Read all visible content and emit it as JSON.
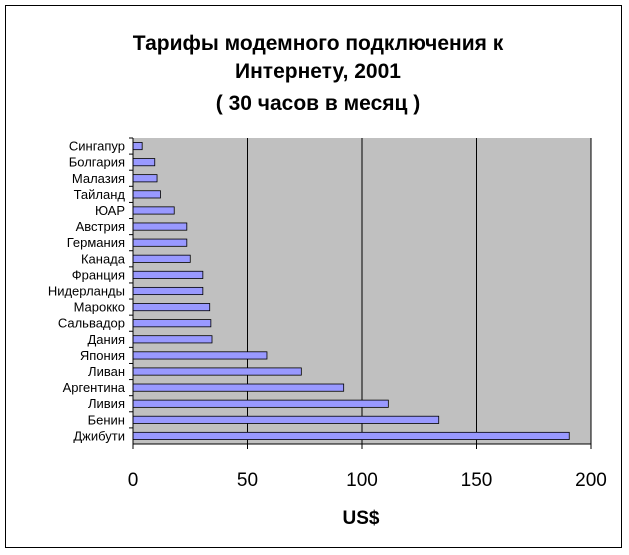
{
  "chart_data": {
    "type": "bar",
    "orientation": "horizontal",
    "title_lines": [
      "Тарифы модемного подключения к",
      "Интернету, 2001",
      "( 30 часов в месяц )"
    ],
    "xlabel": "US$",
    "ylabel": "",
    "categories": [
      "Сингапур",
      "Болгария",
      "Малазия",
      "Тайланд",
      "ЮАР",
      "Австрия",
      "Германия",
      "Канада",
      "Франция",
      "Нидерланды",
      "Марокко",
      "Сальвадор",
      "Дания",
      "Япония",
      "Ливан",
      "Аргентина",
      "Ливия",
      "Бенин",
      "Джибути"
    ],
    "values": [
      4,
      9.5,
      10.5,
      12,
      18,
      23.5,
      23.5,
      25,
      30.5,
      30.5,
      33.5,
      34,
      34.5,
      58.5,
      73.5,
      92,
      111.5,
      133.5,
      190.5
    ],
    "xlim": [
      0,
      200
    ],
    "xticks": [
      "0",
      "50",
      "100",
      "150",
      "200"
    ],
    "grid": true,
    "colors": {
      "plot_background": "#C0C0C0",
      "bar_fill": "#9999FF",
      "bar_stroke": "#000000",
      "gridline": "#000000"
    }
  }
}
